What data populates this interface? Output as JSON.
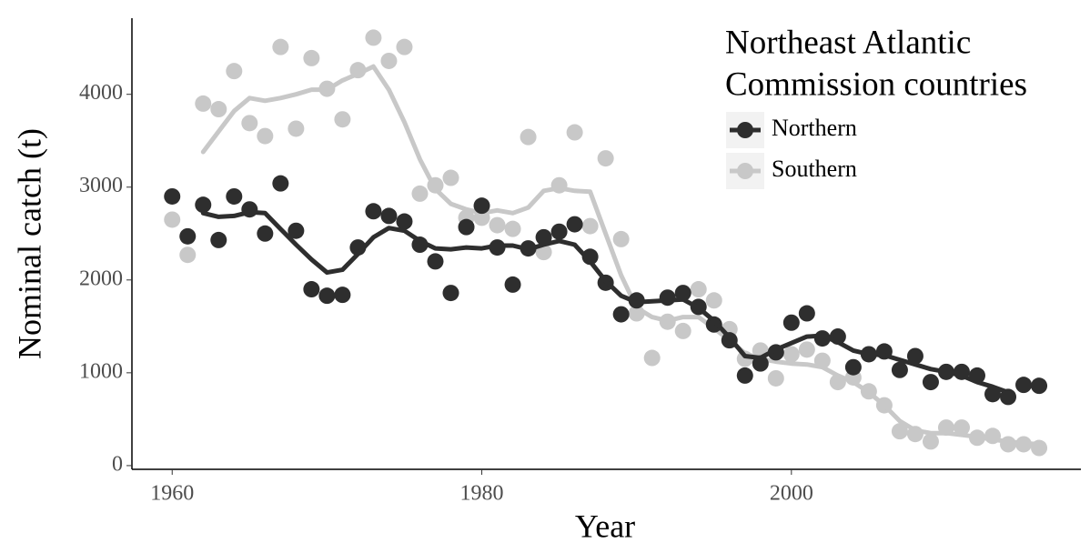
{
  "chart_data": {
    "type": "scatter",
    "x_label": "Year",
    "y_label": "Nominal catch (t)",
    "legend_title": [
      "Northeast Atlantic",
      "Commission countries"
    ],
    "legend_position": "upper right",
    "grid": false,
    "xlim": [
      1957.4,
      2018.7
    ],
    "xticks": [
      1960,
      1980,
      2000
    ],
    "ylim": [
      -40,
      4820
    ],
    "yticks": [
      0,
      1000,
      2000,
      3000,
      4000
    ],
    "x": [
      1960,
      1961,
      1962,
      1963,
      1964,
      1965,
      1966,
      1967,
      1968,
      1969,
      1970,
      1971,
      1972,
      1973,
      1974,
      1975,
      1976,
      1977,
      1978,
      1979,
      1980,
      1981,
      1982,
      1983,
      1984,
      1985,
      1986,
      1987,
      1988,
      1989,
      1990,
      1991,
      1992,
      1993,
      1994,
      1995,
      1996,
      1997,
      1998,
      1999,
      2000,
      2001,
      2002,
      2003,
      2004,
      2005,
      2006,
      2007,
      2008,
      2009,
      2010,
      2011,
      2012,
      2013,
      2014,
      2015,
      2016
    ],
    "series": [
      {
        "name": "Southern",
        "color": "#c8c8c8",
        "values": [
          2650,
          2270,
          3900,
          3840,
          4250,
          3690,
          3550,
          4510,
          3630,
          4390,
          4060,
          3730,
          4260,
          4610,
          4360,
          4510,
          2930,
          3020,
          3100,
          2670,
          2670,
          2590,
          2550,
          3540,
          2300,
          3020,
          3590,
          2580,
          3310,
          2440,
          1640,
          1160,
          1550,
          1450,
          1900,
          1780,
          1470,
          1150,
          1240,
          940,
          1200,
          1250,
          1130,
          900,
          950,
          800,
          650,
          370,
          340,
          260,
          410,
          410,
          300,
          320,
          230,
          230,
          190
        ],
        "smooth": [
          null,
          null,
          3380,
          3600,
          3820,
          3960,
          3930,
          3960,
          4000,
          4050,
          4050,
          4150,
          4220,
          4300,
          4050,
          3700,
          3300,
          2980,
          2820,
          2760,
          2720,
          2750,
          2720,
          2780,
          2960,
          2990,
          2960,
          2950,
          2500,
          2050,
          1700,
          1600,
          1560,
          1600,
          1600,
          1480,
          1350,
          1210,
          1150,
          1120,
          1100,
          1090,
          1060,
          970,
          900,
          790,
          650,
          480,
          380,
          350,
          350,
          330,
          310,
          280,
          260,
          240,
          230
        ]
      },
      {
        "name": "Northern",
        "color": "#2e2e2e",
        "values": [
          2900,
          2470,
          2810,
          2430,
          2900,
          2760,
          2500,
          3040,
          2530,
          1900,
          1830,
          1840,
          2350,
          2740,
          2690,
          2630,
          2380,
          2200,
          1860,
          2570,
          2800,
          2350,
          1950,
          2340,
          2460,
          2520,
          2600,
          2250,
          1970,
          1630,
          1780,
          null,
          1810,
          1860,
          1710,
          1520,
          1350,
          970,
          1100,
          1220,
          1540,
          1640,
          1370,
          1390,
          1060,
          1200,
          1230,
          1030,
          1180,
          900,
          1010,
          1010,
          970,
          770,
          740,
          870,
          860
        ],
        "smooth": [
          null,
          null,
          2720,
          2680,
          2690,
          2730,
          2720,
          2550,
          2380,
          2220,
          2080,
          2110,
          2280,
          2460,
          2560,
          2530,
          2420,
          2340,
          2330,
          2350,
          2340,
          2370,
          2370,
          2330,
          2380,
          2420,
          2380,
          2200,
          1990,
          1830,
          1760,
          1770,
          1780,
          1790,
          1700,
          1560,
          1380,
          1180,
          1160,
          1250,
          1320,
          1390,
          1400,
          1330,
          1240,
          1200,
          1190,
          1140,
          1090,
          1040,
          1010,
          970,
          900,
          850,
          790,
          null,
          null
        ]
      }
    ]
  }
}
